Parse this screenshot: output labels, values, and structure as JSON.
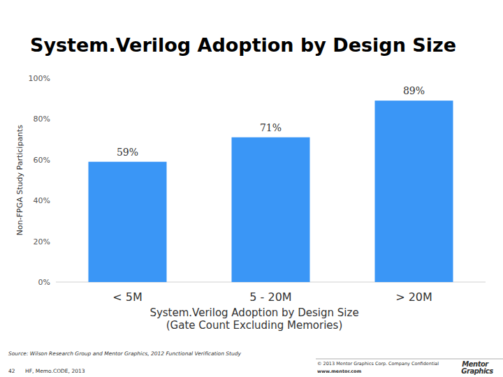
{
  "chart_data": {
    "type": "bar",
    "title": "System.Verilog Adoption by Design Size",
    "y_label": "Non-FPGA Study Participants",
    "x_label": [
      "System.Verilog Adoption by Design Size",
      "(Gate Count Excluding Memories)"
    ],
    "categories": [
      "< 5M",
      "5 - 20M",
      "> 20M"
    ],
    "values": [
      59,
      71,
      89
    ],
    "value_labels": [
      "59%",
      "71%",
      "89%"
    ],
    "color": "#3a96f6",
    "ylim": [
      0,
      100
    ],
    "yticks": [
      {
        "value": 0,
        "label": "0%"
      },
      {
        "value": 20,
        "label": "20%"
      },
      {
        "value": 40,
        "label": "40%"
      },
      {
        "value": 60,
        "label": "60%"
      },
      {
        "value": 80,
        "label": "80%"
      },
      {
        "value": 100,
        "label": "100%"
      }
    ],
    "grid": false,
    "data_labels": true,
    "source": "Source: Wilson Research Group and Mentor Graphics, 2012 Functional Verification Study"
  },
  "footer": {
    "page": "42",
    "event": "HF, Memo.CODE, 2013",
    "copyright": "© 2013 Mentor Graphics Corp.",
    "confidential": "Company Confidential",
    "url": "www.mentor.com",
    "logo": [
      "Mentor",
      "Graphics"
    ]
  }
}
